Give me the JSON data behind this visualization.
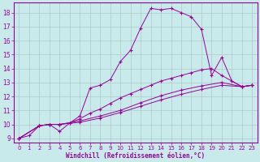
{
  "background_color": "#c8eaea",
  "line_color": "#9b009b",
  "grid_color": "#b0c8c8",
  "xlabel": "Windchill (Refroidissement éolien,°C)",
  "xlabel_color": "#9b009b",
  "tick_color": "#9b009b",
  "xlim": [
    -0.5,
    23.5
  ],
  "ylim": [
    8.7,
    18.7
  ],
  "yticks": [
    9,
    10,
    11,
    12,
    13,
    14,
    15,
    16,
    17,
    18
  ],
  "xticks": [
    0,
    1,
    2,
    3,
    4,
    5,
    6,
    7,
    8,
    9,
    10,
    11,
    12,
    13,
    14,
    15,
    16,
    17,
    18,
    19,
    20,
    21,
    22,
    23
  ],
  "lines": [
    {
      "x": [
        0,
        1,
        2,
        3,
        4,
        5,
        6,
        7,
        8,
        9,
        10,
        11,
        12,
        13,
        14,
        15,
        16,
        17,
        18,
        19,
        20,
        21,
        22,
        23
      ],
      "y": [
        9.0,
        9.2,
        9.9,
        10.0,
        9.5,
        10.1,
        10.6,
        12.6,
        12.8,
        13.2,
        14.5,
        15.3,
        16.9,
        18.3,
        18.2,
        18.3,
        18.0,
        17.7,
        16.8,
        13.5,
        14.8,
        13.1,
        12.7,
        12.8
      ]
    },
    {
      "x": [
        0,
        2,
        3,
        4,
        5,
        6,
        7,
        8,
        9,
        10,
        11,
        12,
        13,
        14,
        15,
        16,
        17,
        18,
        19,
        20,
        22,
        23
      ],
      "y": [
        9.0,
        9.9,
        10.0,
        10.0,
        10.1,
        10.4,
        10.8,
        11.1,
        11.5,
        11.9,
        12.2,
        12.5,
        12.8,
        13.1,
        13.3,
        13.5,
        13.7,
        13.9,
        14.0,
        13.5,
        12.7,
        12.8
      ]
    },
    {
      "x": [
        0,
        2,
        3,
        4,
        6,
        8,
        10,
        12,
        14,
        16,
        18,
        20,
        22,
        23
      ],
      "y": [
        9.0,
        9.9,
        10.0,
        10.0,
        10.25,
        10.6,
        11.0,
        11.55,
        12.05,
        12.45,
        12.75,
        13.0,
        12.7,
        12.8
      ]
    },
    {
      "x": [
        0,
        2,
        3,
        4,
        6,
        8,
        10,
        12,
        14,
        16,
        18,
        20,
        22,
        23
      ],
      "y": [
        9.0,
        9.9,
        10.0,
        10.0,
        10.15,
        10.45,
        10.85,
        11.3,
        11.75,
        12.15,
        12.5,
        12.8,
        12.7,
        12.8
      ]
    }
  ]
}
